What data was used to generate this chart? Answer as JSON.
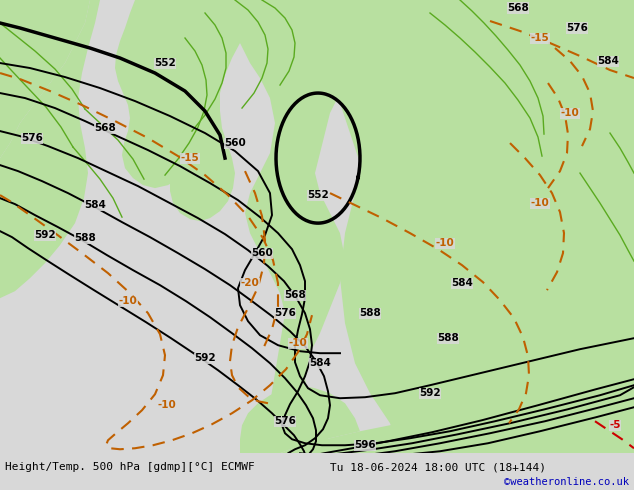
{
  "title_left": "Height/Temp. 500 hPa [gdmp][°C] ECMWF",
  "title_right": "Tu 18-06-2024 18:00 UTC (18+144)",
  "credit": "©weatheronline.co.uk",
  "bg_color": "#d8d8d8",
  "land_color": "#b8e0a0",
  "sea_color": "#d8d8d8",
  "fig_width": 6.34,
  "fig_height": 4.9,
  "contour_lw": 1.4,
  "thick_lw": 2.2
}
